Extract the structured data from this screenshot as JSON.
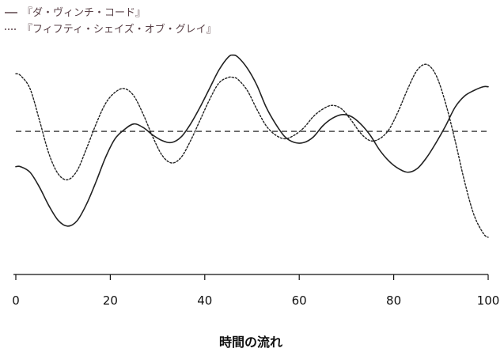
{
  "chart_data": {
    "type": "line",
    "title": "",
    "xlabel": "時間の流れ",
    "ylabel": "",
    "xlim": [
      0,
      100
    ],
    "ylim": [
      0,
      100
    ],
    "xticks": [
      0,
      20,
      40,
      60,
      80,
      100
    ],
    "grid": false,
    "y_axis_shown": false,
    "legend_position": "top-left",
    "reference_line": {
      "y": 43,
      "style": "dashed",
      "color": "#333333"
    },
    "series": [
      {
        "name": "『ダ・ヴィンチ・コード』",
        "style": "solid",
        "color": "#222222",
        "x": [
          0,
          1,
          3,
          5,
          7,
          9,
          11,
          13,
          15,
          17,
          19,
          21,
          23,
          25,
          27,
          29,
          31,
          33,
          35,
          37,
          39,
          41,
          43,
          45,
          46,
          47,
          49,
          51,
          53,
          55,
          57,
          59,
          61,
          63,
          65,
          67,
          69,
          71,
          73,
          75,
          77,
          79,
          81,
          83,
          85,
          87,
          89,
          91,
          93,
          95,
          97,
          99,
          100
        ],
        "y": [
          62,
          62,
          65,
          73,
          83,
          91,
          94,
          91,
          82,
          70,
          57,
          47,
          42,
          39,
          41,
          45,
          48,
          49,
          46,
          39,
          30,
          20,
          10,
          3,
          2,
          3,
          9,
          18,
          30,
          39,
          46,
          49,
          49,
          46,
          40,
          36,
          34,
          35,
          39,
          45,
          53,
          59,
          63,
          65,
          63,
          57,
          49,
          40,
          30,
          24,
          21,
          19,
          19
        ]
      },
      {
        "name": "『フィフティ・シェイズ・オブ・グレイ』",
        "style": "dotted",
        "color": "#222222",
        "x": [
          0,
          1,
          3,
          5,
          7,
          9,
          11,
          13,
          15,
          17,
          19,
          21,
          23,
          25,
          27,
          29,
          31,
          33,
          35,
          37,
          39,
          41,
          43,
          45,
          46,
          47,
          49,
          51,
          53,
          55,
          57,
          59,
          61,
          63,
          65,
          67,
          69,
          71,
          73,
          75,
          77,
          79,
          81,
          83,
          85,
          87,
          89,
          91,
          93,
          95,
          97,
          99,
          100
        ],
        "y": [
          12,
          13,
          20,
          37,
          55,
          66,
          69,
          64,
          52,
          39,
          28,
          22,
          20,
          24,
          34,
          46,
          56,
          60,
          57,
          48,
          37,
          26,
          17,
          14,
          14,
          15,
          21,
          31,
          40,
          45,
          47,
          45,
          41,
          35,
          31,
          29,
          31,
          37,
          44,
          48,
          47,
          42,
          32,
          20,
          10,
          7,
          13,
          28,
          48,
          70,
          88,
          98,
          100
        ]
      }
    ]
  },
  "legend": {
    "items": [
      {
        "label": "『ダ・ヴィンチ・コード』",
        "style": "solid"
      },
      {
        "label": "『フィフティ・シェイズ・オブ・グレイ』",
        "style": "dotted"
      }
    ]
  }
}
